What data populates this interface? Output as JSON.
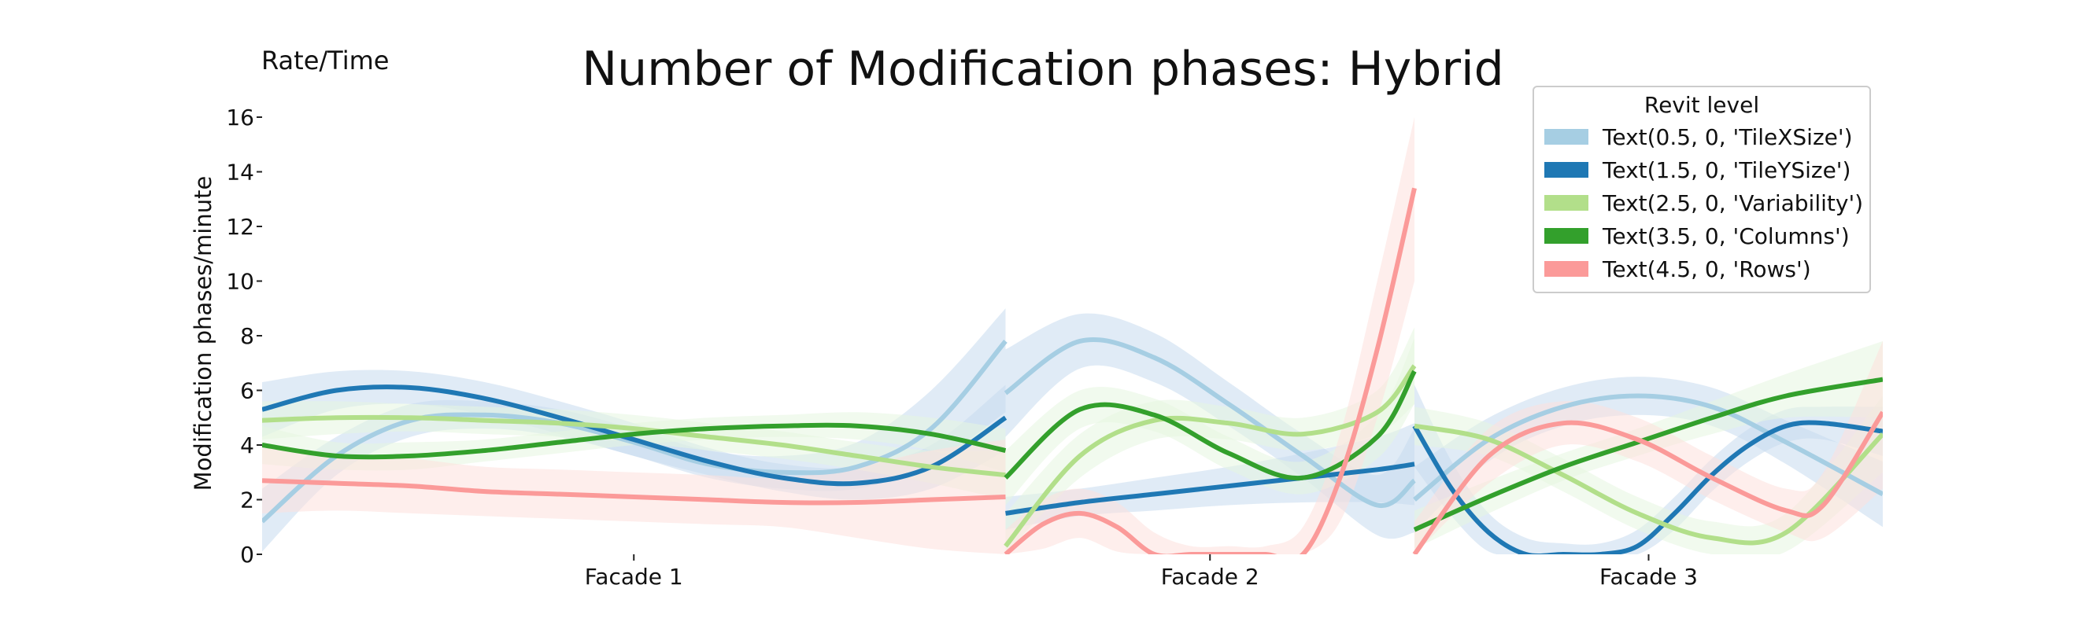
{
  "chart_data": {
    "type": "line",
    "title": "Number of Modification phases: Hybrid",
    "corner_label": "Rate/Time",
    "ylabel": "Modification phases/minute",
    "xlabel": "",
    "ylim": [
      0,
      16
    ],
    "yticks": [
      0,
      2,
      4,
      6,
      8,
      10,
      12,
      14,
      16
    ],
    "grid": false,
    "legend": {
      "title": "Revit level",
      "placement": "top-right",
      "entries": [
        "Text(0.5, 0, 'TileXSize')",
        "Text(1.5, 0, 'TileYSize')",
        "Text(2.5, 0, 'Variability')",
        "Text(3.5, 0, 'Columns')",
        "Text(4.5, 0, 'Rows')"
      ]
    },
    "panels": [
      {
        "label": "Facade 1",
        "x_start": 0,
        "x_end": 10
      },
      {
        "label": "Facade 2",
        "x_start": 10,
        "x_end": 15.5
      },
      {
        "label": "Facade 3",
        "x_start": 15.5,
        "x_end": 21.8
      }
    ],
    "x_domain": [
      0,
      21.8
    ],
    "series": [
      {
        "name": "Text(0.5, 0, 'TileXSize')",
        "line_color": "#a6cee3",
        "band_color": "#c6dbef",
        "segments": [
          {
            "x": [
              0,
              1,
              2,
              3,
              4,
              5,
              6,
              7,
              8,
              9,
              10
            ],
            "y": [
              1.2,
              3.6,
              4.9,
              5.1,
              4.8,
              4.1,
              3.3,
              3.0,
              3.2,
              4.6,
              7.8
            ],
            "lower": [
              0.1,
              2.9,
              4.3,
              4.6,
              4.3,
              3.6,
              2.8,
              2.4,
              2.4,
              3.3,
              5.2
            ],
            "upper": [
              2.4,
              4.3,
              5.5,
              5.6,
              5.3,
              4.6,
              3.8,
              3.6,
              4.1,
              6.0,
              9.0
            ]
          },
          {
            "x": [
              10,
              11,
              12,
              13,
              14,
              15,
              15.5
            ],
            "y": [
              5.9,
              7.8,
              7.2,
              5.5,
              3.6,
              1.8,
              2.7
            ],
            "lower": [
              4.3,
              6.8,
              6.3,
              4.7,
              2.8,
              0.7,
              0.8
            ],
            "upper": [
              7.5,
              8.8,
              8.1,
              6.3,
              4.4,
              2.9,
              4.6
            ]
          },
          {
            "x": [
              15.5,
              16.5,
              17.5,
              18.5,
              19.5,
              20.5,
              21.8
            ],
            "y": [
              2.0,
              4.2,
              5.4,
              5.8,
              5.4,
              4.1,
              2.2
            ],
            "lower": [
              0.8,
              3.4,
              4.7,
              5.1,
              4.7,
              3.3,
              1.0
            ],
            "upper": [
              3.2,
              5.0,
              6.1,
              6.5,
              6.1,
              4.9,
              3.4
            ]
          }
        ]
      },
      {
        "name": "Text(1.5, 0, 'TileYSize')",
        "line_color": "#1f78b4",
        "band_color": "#c6dbef",
        "segments": [
          {
            "x": [
              0,
              1,
              2,
              3,
              4,
              5,
              6,
              7,
              8,
              9,
              10
            ],
            "y": [
              5.3,
              6.0,
              6.1,
              5.7,
              5.0,
              4.2,
              3.4,
              2.8,
              2.6,
              3.2,
              5.0
            ],
            "lower": [
              4.3,
              5.3,
              5.5,
              5.1,
              4.4,
              3.6,
              2.9,
              2.3,
              2.0,
              2.4,
              3.8
            ],
            "upper": [
              6.3,
              6.7,
              6.7,
              6.3,
              5.6,
              4.8,
              3.9,
              3.3,
              3.2,
              4.0,
              6.2
            ]
          },
          {
            "x": [
              10,
              11,
              12,
              13,
              14,
              15,
              15.5
            ],
            "y": [
              1.5,
              1.9,
              2.2,
              2.5,
              2.8,
              3.1,
              3.3
            ],
            "lower": [
              0.9,
              1.4,
              1.6,
              1.8,
              1.9,
              1.9,
              1.8
            ],
            "upper": [
              2.1,
              2.4,
              2.8,
              3.2,
              3.7,
              4.3,
              4.8
            ]
          },
          {
            "x": [
              15.5,
              16,
              16.5,
              17,
              17.5,
              18,
              18.5,
              19,
              19.5,
              20,
              20.5,
              21,
              21.8
            ],
            "y": [
              4.7,
              2.4,
              0.8,
              0.0,
              0.0,
              0.0,
              0.3,
              1.5,
              2.9,
              4.0,
              4.7,
              4.8,
              4.5
            ],
            "lower": [
              3.2,
              1.4,
              0.1,
              0.0,
              0.0,
              0.0,
              0.0,
              0.9,
              2.3,
              3.4,
              4.1,
              4.2,
              3.6
            ],
            "upper": [
              6.2,
              3.4,
              1.5,
              0.6,
              0.4,
              0.4,
              0.9,
              2.1,
              3.5,
              4.6,
              5.3,
              5.4,
              5.4
            ]
          }
        ]
      },
      {
        "name": "Text(2.5, 0, 'Variability')",
        "line_color": "#b2df8a",
        "band_color": "#e5f5e0",
        "segments": [
          {
            "x": [
              0,
              1,
              2,
              3,
              4,
              5,
              6,
              7,
              8,
              9,
              10
            ],
            "y": [
              4.9,
              5.0,
              5.0,
              4.9,
              4.8,
              4.6,
              4.3,
              4.0,
              3.6,
              3.2,
              2.9
            ],
            "lower": [
              4.2,
              4.4,
              4.5,
              4.4,
              4.3,
              4.1,
              3.8,
              3.5,
              3.1,
              2.6,
              2.0
            ],
            "upper": [
              5.6,
              5.6,
              5.5,
              5.4,
              5.3,
              5.1,
              4.8,
              4.5,
              4.1,
              3.8,
              3.8
            ]
          },
          {
            "x": [
              10,
              11,
              12,
              13,
              14,
              15,
              15.5
            ],
            "y": [
              0.3,
              3.6,
              4.9,
              4.8,
              4.4,
              5.2,
              6.9
            ],
            "lower": [
              0.0,
              2.8,
              4.2,
              4.2,
              3.8,
              4.4,
              5.5
            ],
            "upper": [
              1.5,
              4.4,
              5.6,
              5.4,
              5.0,
              6.0,
              8.3
            ]
          },
          {
            "x": [
              15.5,
              16.5,
              17.5,
              18.5,
              19.5,
              20.5,
              21.8
            ],
            "y": [
              4.7,
              4.2,
              2.9,
              1.5,
              0.6,
              0.8,
              4.4
            ],
            "lower": [
              4.0,
              3.6,
              2.3,
              0.9,
              0.0,
              0.1,
              3.0
            ],
            "upper": [
              5.4,
              4.8,
              3.5,
              2.1,
              1.2,
              1.5,
              5.8
            ]
          }
        ]
      },
      {
        "name": "Text(3.5, 0, 'Columns')",
        "line_color": "#33a02c",
        "band_color": "#e5f5e0",
        "segments": [
          {
            "x": [
              0,
              1,
              2,
              3,
              4,
              5,
              6,
              7,
              8,
              9,
              10
            ],
            "y": [
              4.0,
              3.6,
              3.6,
              3.8,
              4.1,
              4.4,
              4.6,
              4.7,
              4.7,
              4.4,
              3.8
            ],
            "lower": [
              3.3,
              3.1,
              3.1,
              3.4,
              3.7,
              4.0,
              4.2,
              4.3,
              4.2,
              3.8,
              3.0
            ],
            "upper": [
              4.7,
              4.1,
              4.1,
              4.2,
              4.5,
              4.8,
              5.0,
              5.1,
              5.2,
              5.0,
              4.6
            ]
          },
          {
            "x": [
              10,
              11,
              12,
              13,
              14,
              15,
              15.5
            ],
            "y": [
              2.8,
              5.3,
              5.1,
              3.7,
              2.8,
              4.3,
              6.7
            ],
            "lower": [
              1.8,
              4.6,
              4.5,
              3.1,
              2.2,
              3.5,
              5.5
            ],
            "upper": [
              3.8,
              6.0,
              5.7,
              4.3,
              3.4,
              5.1,
              7.9
            ]
          },
          {
            "x": [
              15.5,
              16.5,
              17.5,
              18.5,
              19.5,
              20.5,
              21.8
            ],
            "y": [
              0.9,
              2.1,
              3.2,
              4.1,
              5.0,
              5.8,
              6.4
            ],
            "lower": [
              0.2,
              1.5,
              2.7,
              3.6,
              4.4,
              5.0,
              5.0
            ],
            "upper": [
              1.6,
              2.7,
              3.7,
              4.6,
              5.6,
              6.6,
              7.8
            ]
          }
        ]
      },
      {
        "name": "Text(4.5, 0, 'Rows')",
        "line_color": "#fb9a99",
        "band_color": "#fde0dd",
        "segments": [
          {
            "x": [
              0,
              1,
              2,
              3,
              4,
              5,
              6,
              7,
              8,
              9,
              10
            ],
            "y": [
              2.7,
              2.6,
              2.5,
              2.3,
              2.2,
              2.1,
              2.0,
              1.9,
              1.9,
              2.0,
              2.1
            ],
            "lower": [
              1.5,
              1.6,
              1.5,
              1.4,
              1.3,
              1.2,
              1.1,
              1.0,
              0.6,
              0.2,
              0.0
            ],
            "upper": [
              3.9,
              3.6,
              3.5,
              3.2,
              3.1,
              3.0,
              2.9,
              2.8,
              3.2,
              3.8,
              4.2
            ]
          },
          {
            "x": [
              10,
              10.5,
              11,
              11.5,
              12,
              12.5,
              13,
              13.5,
              14,
              14.5,
              15,
              15.5
            ],
            "y": [
              0.0,
              1.1,
              1.5,
              1.0,
              0.0,
              0.0,
              0.0,
              0.0,
              0.0,
              2.8,
              7.5,
              13.4
            ],
            "lower": [
              0.0,
              0.2,
              0.6,
              0.1,
              0.0,
              0.0,
              0.0,
              0.0,
              0.0,
              1.2,
              5.0,
              10.0
            ],
            "upper": [
              0.9,
              2.0,
              2.4,
              1.9,
              0.8,
              0.3,
              0.3,
              0.3,
              1.0,
              4.4,
              10.0,
              16.0
            ]
          },
          {
            "x": [
              15.5,
              16.5,
              17.5,
              18.5,
              19.5,
              20.5,
              21,
              21.8
            ],
            "y": [
              0.0,
              3.6,
              4.8,
              4.2,
              2.8,
              1.6,
              1.8,
              5.2
            ],
            "lower": [
              0.0,
              2.6,
              4.0,
              3.4,
              2.0,
              0.8,
              0.6,
              2.4
            ],
            "upper": [
              1.2,
              4.6,
              5.6,
              5.0,
              3.6,
              2.4,
              3.0,
              7.8
            ]
          }
        ]
      }
    ]
  }
}
